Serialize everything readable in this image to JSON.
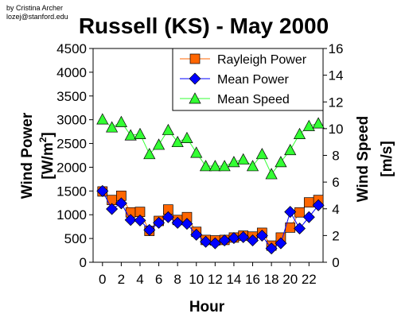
{
  "credit": {
    "line1": "by Cristina Archer",
    "line2": "lozej@stanford.edu"
  },
  "chart_data": {
    "type": "scatter",
    "title": "Russell (KS) - May 2000",
    "xlabel": "Hour",
    "ylabel_left": "Wind Power",
    "ylabel_left_unit": "[W/m",
    "ylabel_left_unit_sup": "2",
    "ylabel_left_unit_end": "]",
    "ylabel_right": "Wind Speed",
    "ylabel_right_unit": "[m/s]",
    "xlim": [
      -1,
      23.5
    ],
    "ylim_left": [
      0,
      4500
    ],
    "ylim_right": [
      0,
      16
    ],
    "x_ticks": [
      0,
      2,
      4,
      6,
      8,
      10,
      12,
      14,
      16,
      18,
      20,
      22
    ],
    "y_left_ticks": [
      0,
      500,
      1000,
      1500,
      2000,
      2500,
      3000,
      3500,
      4000,
      4500
    ],
    "y_right_ticks": [
      0,
      2,
      4,
      6,
      8,
      10,
      12,
      14,
      16
    ],
    "x": [
      0,
      1,
      2,
      3,
      4,
      5,
      6,
      7,
      8,
      9,
      10,
      11,
      12,
      13,
      14,
      15,
      16,
      17,
      18,
      19,
      20,
      21,
      22,
      23
    ],
    "legend_position": "top-right",
    "series": [
      {
        "name": "Rayleigh Power",
        "axis": "left",
        "marker": "square",
        "color": "#FF6600",
        "values": [
          1490,
          1310,
          1400,
          1050,
          1060,
          660,
          870,
          1110,
          890,
          950,
          640,
          470,
          460,
          470,
          520,
          560,
          540,
          620,
          350,
          520,
          730,
          1050,
          1260,
          1310
        ]
      },
      {
        "name": "Mean Power",
        "axis": "left",
        "marker": "diamond",
        "color": "#0000FF",
        "values": [
          1500,
          1120,
          1240,
          890,
          880,
          680,
          830,
          950,
          830,
          810,
          580,
          430,
          400,
          460,
          510,
          530,
          460,
          560,
          290,
          400,
          1060,
          710,
          950,
          1200
        ]
      },
      {
        "name": "Mean Speed",
        "axis": "right",
        "marker": "triangle",
        "color": "#33FF33",
        "values": [
          10.7,
          10.1,
          10.5,
          9.5,
          9.6,
          8.1,
          8.8,
          9.9,
          9.0,
          9.3,
          8.2,
          7.2,
          7.2,
          7.2,
          7.5,
          7.7,
          7.2,
          8.1,
          6.6,
          7.5,
          8.4,
          9.6,
          10.2,
          10.4
        ]
      }
    ]
  }
}
